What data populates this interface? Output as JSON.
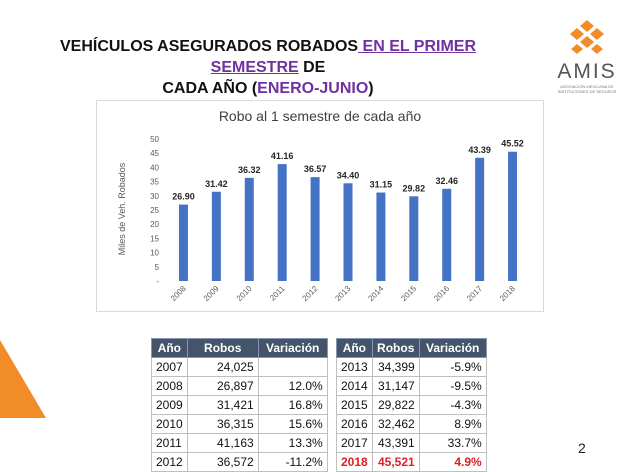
{
  "title": {
    "part1": "VEHÍCULOS ASEGURADOS ROBADOS",
    "part2": " EN EL PRIMER SEMESTRE",
    "part3": " DE",
    "line2a": "CADA AÑO (",
    "line2b": "ENERO-JUNIO",
    "line2c": ")"
  },
  "logo": {
    "text": "AMIS",
    "subtitle1": "ASOCIACIÓN MEXICANA DE",
    "subtitle2": "INSTITUCIONES DE SEGUROS",
    "color": "#f28c28"
  },
  "chart_data": {
    "type": "bar",
    "title": "Robo al 1 semestre de cada año",
    "ylabel": "Miles de Veh. Robados",
    "xlabel": "",
    "categories": [
      "2008",
      "2009",
      "2010",
      "2011",
      "2012",
      "2013",
      "2014",
      "2015",
      "2016",
      "2017",
      "2018"
    ],
    "values": [
      26.9,
      31.42,
      36.32,
      41.16,
      36.57,
      34.4,
      31.15,
      29.82,
      32.46,
      43.39,
      45.52
    ],
    "value_labels": [
      "26.90",
      "31.42",
      "36.32",
      "41.16",
      "36.57",
      "34.40",
      "31.15",
      "29.82",
      "32.46",
      "43.39",
      "45.52"
    ],
    "ylim": [
      0,
      50
    ],
    "yticks": [
      "-",
      "5",
      "10",
      "15",
      "20",
      "25",
      "30",
      "35",
      "40",
      "45",
      "50"
    ],
    "grid": false,
    "bar_color": "#4472c4"
  },
  "table_left": {
    "headers": [
      "Año",
      "Robos",
      "Variación"
    ],
    "rows": [
      [
        "2007",
        "24,025",
        ""
      ],
      [
        "2008",
        "26,897",
        "12.0%"
      ],
      [
        "2009",
        "31,421",
        "16.8%"
      ],
      [
        "2010",
        "36,315",
        "15.6%"
      ],
      [
        "2011",
        "41,163",
        "13.3%"
      ],
      [
        "2012",
        "36,572",
        "-11.2%"
      ]
    ]
  },
  "table_right": {
    "headers": [
      "Año",
      "Robos",
      "Variación"
    ],
    "rows": [
      [
        "2013",
        "34,399",
        "-5.9%"
      ],
      [
        "2014",
        "31,147",
        "-9.5%"
      ],
      [
        "2015",
        "29,822",
        "-4.3%"
      ],
      [
        "2016",
        "32,462",
        "8.9%"
      ],
      [
        "2017",
        "43,391",
        "33.7%"
      ],
      [
        "2018",
        "45,521",
        "4.9%"
      ]
    ],
    "highlight_row": 5,
    "highlight_color": "#e02020"
  },
  "page_number": "2",
  "colors": {
    "header_bg": "#44546a",
    "accent_orange": "#f28c28",
    "title_highlight": "#7030a0"
  }
}
